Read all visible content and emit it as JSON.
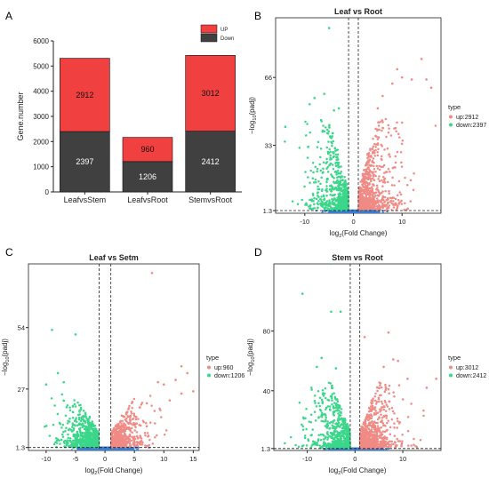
{
  "colors": {
    "up": "#f04040",
    "down": "#404040",
    "vup": "#f08a85",
    "vdown": "#3bd68a",
    "vns": "#3b7fd6"
  },
  "chart_data": [
    {
      "panel": "A",
      "type": "bar",
      "stacked": true,
      "categories": [
        "LeafvsStem",
        "LeafvsRoot",
        "StemvsRoot"
      ],
      "ylabel": "Gene.number",
      "ylim": [
        0,
        6000
      ],
      "yticks": [
        "0",
        "1000",
        "2000",
        "3000",
        "4000",
        "5000",
        "6000"
      ],
      "series": [
        {
          "name": "Down",
          "values": [
            2397,
            1206,
            2412
          ],
          "labels": [
            "2397",
            "1206",
            "2412"
          ]
        },
        {
          "name": "UP",
          "values": [
            2912,
            960,
            3012
          ],
          "labels": [
            "2912",
            "960",
            "3012"
          ]
        }
      ],
      "legend": "top-right"
    },
    {
      "panel": "B",
      "type": "scatter",
      "title": "Leaf vs Root",
      "xlabel_main": "log",
      "xlabel_sub": "2",
      "xlabel_rest": "(Fold Change)",
      "ylabel_main": "−log",
      "ylabel_sub": "10",
      "ylabel_rest": "(padj)",
      "xlim": [
        -16,
        18
      ],
      "ylim": [
        0,
        95
      ],
      "xticks": [
        "-10",
        "0",
        "10"
      ],
      "xtick_values": [
        -10,
        0,
        10
      ],
      "yticks": [
        "1.3",
        "33",
        "66"
      ],
      "ytick_values": [
        1.3,
        33,
        66
      ],
      "vlines": [
        -1,
        1
      ],
      "hline": 1.3,
      "legend_title": "type",
      "legend": [
        {
          "label": "up:2912",
          "key": "up"
        },
        {
          "label": "down:2397",
          "key": "down"
        }
      ],
      "up_count": 2912,
      "down_count": 2397
    },
    {
      "panel": "C",
      "type": "scatter",
      "title": "Leaf vs Setm",
      "xlabel_main": "log",
      "xlabel_sub": "2",
      "xlabel_rest": "(Fold Change)",
      "ylabel_main": "−log",
      "ylabel_sub": "10",
      "ylabel_rest": "(padj)",
      "xlim": [
        -13,
        16
      ],
      "ylim": [
        0,
        82
      ],
      "xticks": [
        "-10",
        "-5",
        "0",
        "5",
        "10",
        "15"
      ],
      "xtick_values": [
        -10,
        -5,
        0,
        5,
        10,
        15
      ],
      "yticks": [
        "1.3",
        "27",
        "54"
      ],
      "ytick_values": [
        1.3,
        27,
        54
      ],
      "vlines": [
        -1,
        1
      ],
      "hline": 1.3,
      "legend_title": "type",
      "legend": [
        {
          "label": "up:960",
          "key": "up"
        },
        {
          "label": "down:1206",
          "key": "down"
        }
      ],
      "up_count": 960,
      "down_count": 1206
    },
    {
      "panel": "D",
      "type": "scatter",
      "title": "Stem vs Root",
      "xlabel_main": "log",
      "xlabel_sub": "2",
      "xlabel_rest": "(Fold Change)",
      "ylabel_main": "−log",
      "ylabel_sub": "10",
      "ylabel_rest": "(padj)",
      "xlim": [
        -17,
        18
      ],
      "ylim": [
        0,
        125
      ],
      "xticks": [
        "-10",
        "0",
        "10"
      ],
      "xtick_values": [
        -10,
        0,
        10
      ],
      "yticks": [
        "1.3",
        "40",
        "80"
      ],
      "ytick_values": [
        1.3,
        40,
        80
      ],
      "vlines": [
        -1,
        1
      ],
      "hline": 1.3,
      "legend_title": "type",
      "legend": [
        {
          "label": "up:3012",
          "key": "up"
        },
        {
          "label": "down:2412",
          "key": "down"
        }
      ],
      "up_count": 3012,
      "down_count": 2412
    }
  ]
}
